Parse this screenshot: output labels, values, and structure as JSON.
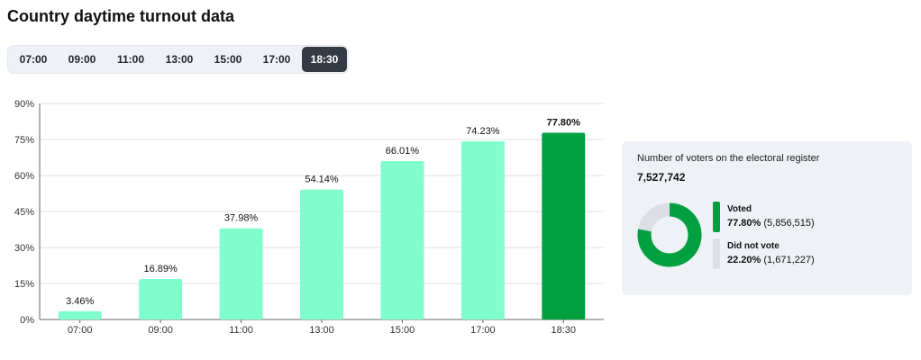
{
  "page": {
    "title": "Country daytime turnout data"
  },
  "tabs": [
    {
      "label": "07:00",
      "active": false
    },
    {
      "label": "09:00",
      "active": false
    },
    {
      "label": "11:00",
      "active": false
    },
    {
      "label": "13:00",
      "active": false
    },
    {
      "label": "15:00",
      "active": false
    },
    {
      "label": "17:00",
      "active": false
    },
    {
      "label": "18:30",
      "active": true
    }
  ],
  "chart_data": {
    "type": "bar",
    "categories": [
      "07:00",
      "09:00",
      "11:00",
      "13:00",
      "15:00",
      "17:00",
      "18:30"
    ],
    "values": [
      3.46,
      16.89,
      37.98,
      54.14,
      66.01,
      74.23,
      77.8
    ],
    "value_labels": [
      "3.46%",
      "16.89%",
      "37.98%",
      "54.14%",
      "66.01%",
      "74.23%",
      "77.80%"
    ],
    "highlight_index": 6,
    "ylim": [
      0,
      90
    ],
    "yticks": [
      0,
      15,
      30,
      45,
      60,
      75,
      90
    ],
    "ytick_labels": [
      "0%",
      "15%",
      "30%",
      "45%",
      "60%",
      "75%",
      "90%"
    ],
    "grid": true,
    "colors": {
      "bar": "#80ffcc",
      "highlight": "#00a040",
      "grid": "#e2e2e2"
    }
  },
  "summary": {
    "register_label": "Number of voters on the electoral register",
    "register_value": "7,527,742",
    "voted": {
      "label": "Voted",
      "percent": "77.80%",
      "count": "(5,856,515)",
      "fraction": 0.778,
      "color": "#00a040"
    },
    "not_voted": {
      "label": "Did not vote",
      "percent": "22.20%",
      "count": "(1,671,227)",
      "fraction": 0.222,
      "color": "#dcdfe3"
    }
  }
}
